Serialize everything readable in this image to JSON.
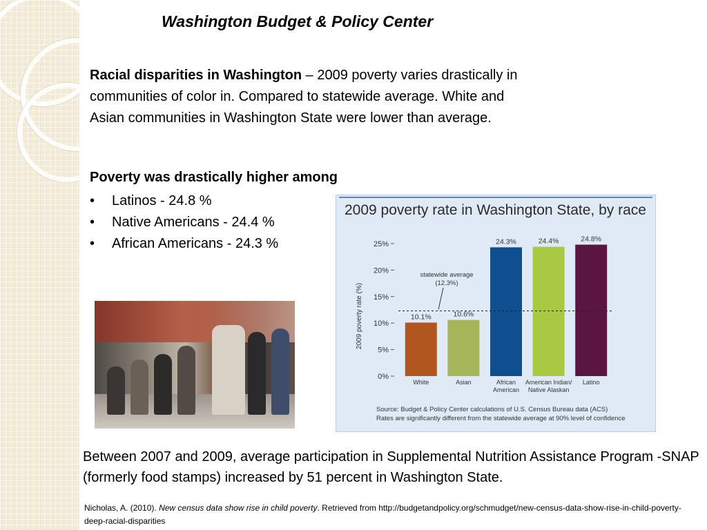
{
  "slide": {
    "title": "Washington Budget & Policy Center",
    "intro_bold": "Racial disparities in Washington",
    "intro_text": " – 2009 poverty varies drastically in communities of color in. Compared to statewide average. White and Asian communities in Washington State were lower than average.",
    "poverty_heading": "Poverty was drastically higher among",
    "bullets": [
      "Latinos - 24.8 %",
      "Native Americans - 24.4 %",
      "African Americans - 24.3 %"
    ],
    "snap_text": " Between 2007 and 2009, average participation in Supplemental Nutrition Assistance Program -SNAP (formerly food stamps) increased by 51 percent in Washington State.",
    "citation_prefix": "Nicholas, A. (2010). ",
    "citation_title": "New census data show rise in child poverty",
    "citation_suffix": ". Retrieved from http://budgetandpolicy.org/schmudget/new-census-data-show-rise-in-child-poverty-deep-racial-disparities"
  },
  "chart_data": {
    "type": "bar",
    "title": "2009 poverty rate in Washington State, by race",
    "ylabel": "2009 poverty rate (%)",
    "xlabel": "",
    "ylim": [
      0,
      25
    ],
    "yticks": [
      0,
      5,
      10,
      15,
      20,
      25
    ],
    "ytick_labels": [
      "0%",
      "5%",
      "10%",
      "15%",
      "20%",
      "25%"
    ],
    "categories": [
      [
        "White"
      ],
      [
        "Asian"
      ],
      [
        "African",
        "American"
      ],
      [
        "American Indian/",
        "Native Alaskan"
      ],
      [
        "Latino"
      ]
    ],
    "values": [
      10.1,
      10.6,
      24.3,
      24.4,
      24.8
    ],
    "value_labels": [
      "10.1%",
      "10.6%",
      "24.3%",
      "24.4%",
      "24.8%"
    ],
    "bar_colors": [
      "#b0561e",
      "#a6b55a",
      "#0f4f8f",
      "#a9c942",
      "#5a1540"
    ],
    "reference_line": {
      "value": 12.3,
      "label_line1": "statewide average",
      "label_line2": "(12.3%)"
    },
    "source_line1": "Source: Budget & Policy Center calculations of U.S. Census Bureau data (ACS)",
    "source_line2": "Rates are significantly different from the statewide average at 90% level of confidence",
    "grid": false,
    "legend": "none"
  }
}
